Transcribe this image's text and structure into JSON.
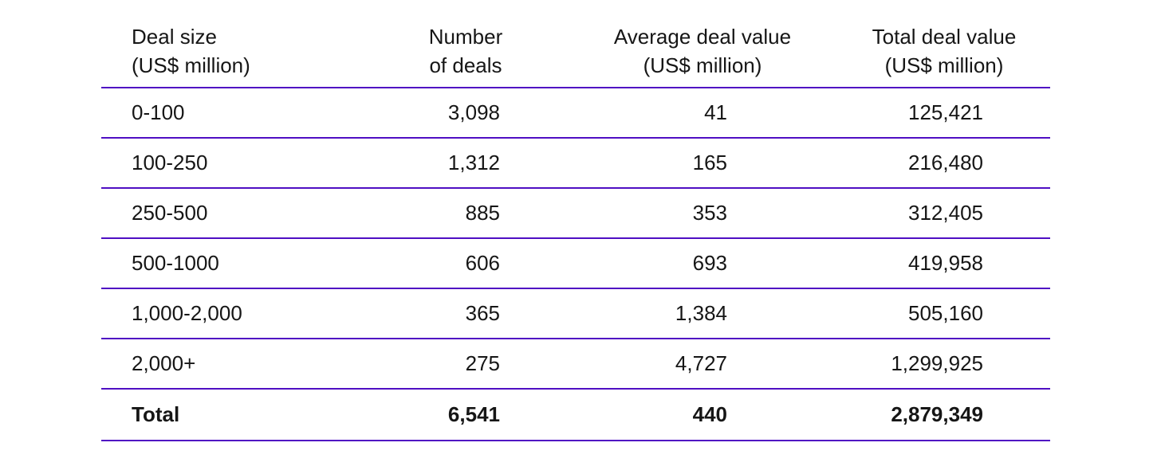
{
  "style": {
    "accent_color": "#4f0fc3",
    "text_color": "#161616",
    "background_color": "#ffffff"
  },
  "chart_data": {
    "type": "table",
    "title": "",
    "columns": [
      "Deal size\n(US$ million)",
      "Number\nof deals",
      "Average deal value\n(US$ million)",
      "Total deal value\n(US$ million)"
    ],
    "rows": [
      [
        "0-100",
        "3,098",
        "41",
        "125,421"
      ],
      [
        "100-250",
        "1,312",
        "165",
        "216,480"
      ],
      [
        "250-500",
        "885",
        "353",
        "312,405"
      ],
      [
        "500-1000",
        "606",
        "693",
        "419,958"
      ],
      [
        "1,000-2,000",
        "365",
        "1,384",
        "505,160"
      ],
      [
        "2,000+",
        "275",
        "4,727",
        "1,299,925"
      ]
    ],
    "total_row": [
      "Total",
      "6,541",
      "440",
      "2,879,349"
    ],
    "numeric": {
      "categories": [
        "0-100",
        "100-250",
        "250-500",
        "500-1000",
        "1,000-2,000",
        "2,000+"
      ],
      "series": [
        {
          "name": "Number of deals",
          "values": [
            3098,
            1312,
            885,
            606,
            365,
            275
          ]
        },
        {
          "name": "Average deal value (US$ million)",
          "values": [
            41,
            165,
            353,
            693,
            1384,
            4727
          ]
        },
        {
          "name": "Total deal value (US$ million)",
          "values": [
            125421,
            216480,
            312405,
            419958,
            505160,
            1299925
          ]
        }
      ],
      "totals": {
        "number_of_deals": 6541,
        "average_deal_value_usd_million": 440,
        "total_deal_value_usd_million": 2879349
      }
    }
  }
}
